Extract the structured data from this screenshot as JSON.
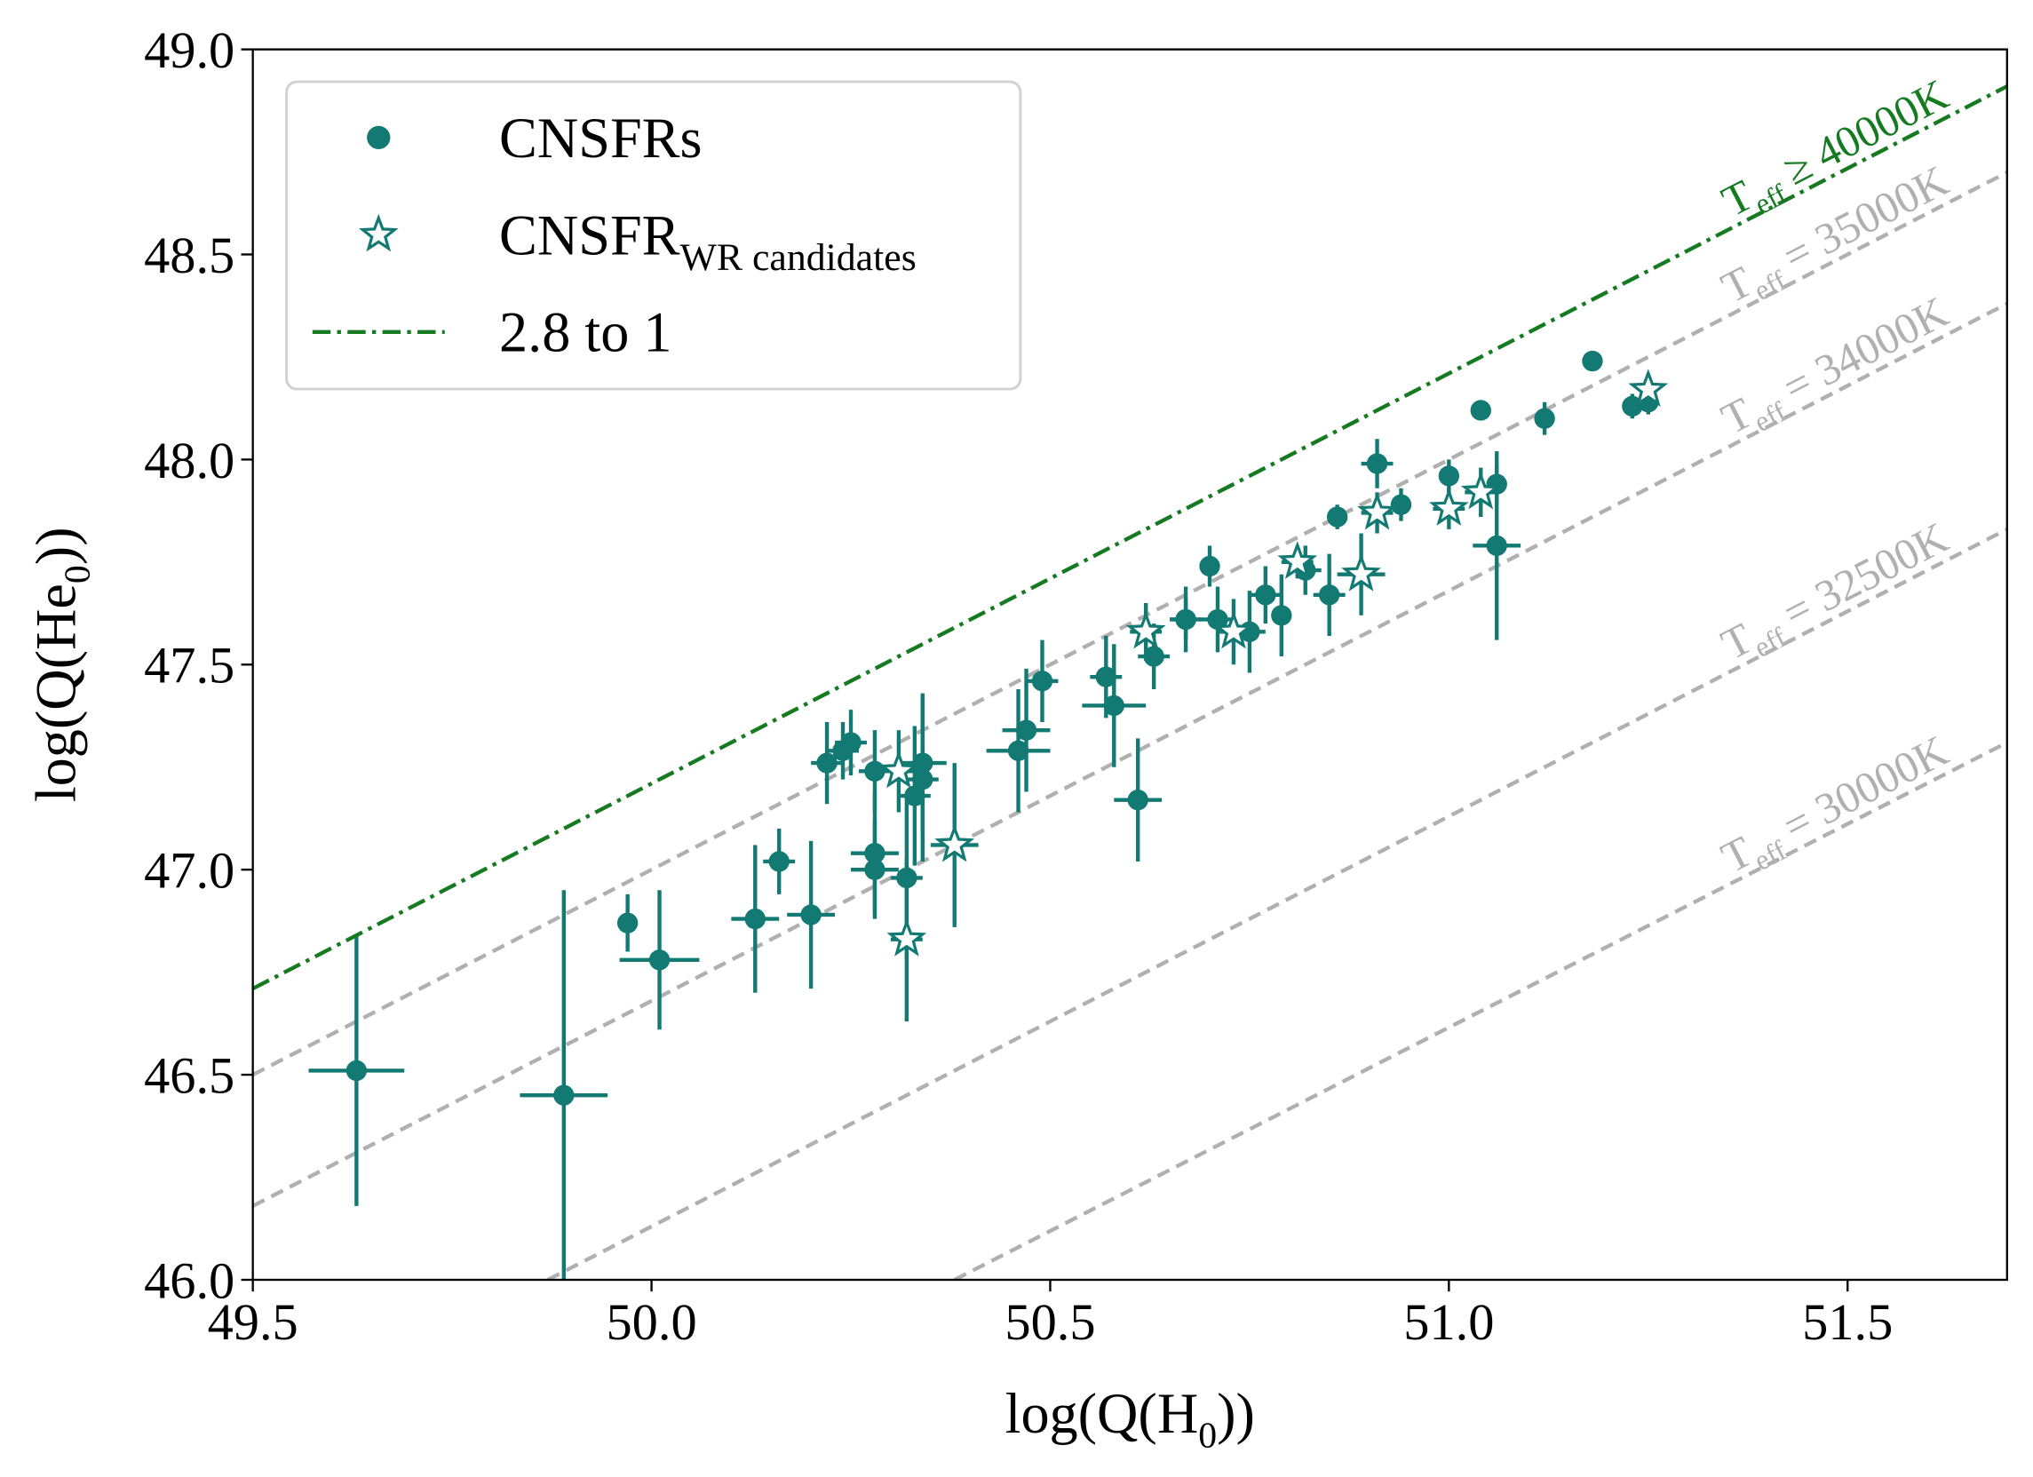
{
  "chart_data": {
    "type": "scatter",
    "xlabel": {
      "text": "log(Q(H",
      "sub": "0",
      "tail": "))"
    },
    "ylabel": {
      "text": "log(Q(He",
      "sub": "0",
      "tail": "))"
    },
    "xlim": [
      49.5,
      51.7
    ],
    "ylim": [
      46.0,
      49.0
    ],
    "xticks": [
      49.5,
      {
        "value": 50,
        "label": "50.0"
      },
      50.5,
      {
        "value": 51,
        "label": "51.0"
      },
      51.5
    ],
    "yticks": [
      {
        "value": 46,
        "label": "46.0"
      },
      46.5,
      {
        "value": 47,
        "label": "47.0"
      },
      47.5,
      {
        "value": 48,
        "label": "48.0"
      },
      48.5,
      {
        "value": 49,
        "label": "49.0"
      }
    ],
    "legend": "upper left",
    "series": [
      {
        "name": "CNSFRs",
        "marker": "circle",
        "color": "#137a73",
        "x": [
          49.63,
          49.89,
          49.97,
          50.01,
          50.13,
          50.16,
          50.2,
          50.22,
          50.24,
          50.25,
          50.28,
          50.28,
          50.28,
          50.32,
          50.33,
          50.34,
          50.34,
          50.46,
          50.47,
          50.49,
          50.57,
          50.58,
          50.61,
          50.63,
          50.67,
          50.67,
          50.7,
          50.71,
          50.75,
          50.77,
          50.79,
          50.82,
          50.85,
          50.86,
          50.91,
          50.94,
          51.0,
          51.04,
          51.06,
          51.06,
          51.12,
          51.18,
          51.23,
          51.25
        ],
        "y": [
          46.51,
          46.45,
          46.87,
          46.78,
          46.88,
          47.02,
          46.89,
          47.26,
          47.29,
          47.31,
          47.24,
          47.04,
          47.0,
          46.98,
          47.18,
          47.22,
          47.26,
          47.29,
          47.34,
          47.46,
          47.47,
          47.4,
          47.17,
          47.52,
          47.61,
          47.61,
          47.74,
          47.61,
          47.58,
          47.67,
          47.62,
          47.73,
          47.67,
          47.86,
          47.99,
          47.89,
          47.96,
          48.12,
          47.79,
          47.94,
          48.1,
          48.24,
          48.13,
          48.14
        ],
        "xerr": [
          0.06,
          0.055,
          0.01,
          0.05,
          0.03,
          0.02,
          0.03,
          0.02,
          0.02,
          0.02,
          0.02,
          0.03,
          0.03,
          0.02,
          0.02,
          0.02,
          0.03,
          0.04,
          0.03,
          0.02,
          0.02,
          0.04,
          0.03,
          0.02,
          0.02,
          0.02,
          0.01,
          0.02,
          0.02,
          0.02,
          0.01,
          0.02,
          0.02,
          0.01,
          0.02,
          0.01,
          0.01,
          0,
          0.03,
          0.01,
          0.01,
          0,
          0.01,
          0.01
        ],
        "yerr": [
          0.33,
          0.5,
          0.07,
          0.17,
          0.18,
          0.08,
          0.18,
          0.1,
          0.07,
          0.08,
          0.1,
          0.15,
          0.12,
          0.2,
          0.17,
          0.2,
          0.17,
          0.15,
          0.15,
          0.1,
          0.1,
          0.15,
          0.15,
          0.08,
          0.08,
          0.05,
          0.05,
          0.08,
          0.1,
          0.07,
          0.1,
          0.06,
          0.1,
          0.03,
          0.06,
          0.04,
          0.04,
          0,
          0.23,
          0.05,
          0.04,
          0,
          0.03,
          0.03
        ]
      },
      {
        "name": "CNSFR",
        "name_sub": "WR candidates",
        "marker": "star",
        "color": "#137a73",
        "x": [
          50.31,
          50.32,
          50.38,
          50.62,
          50.73,
          50.81,
          50.89,
          50.91,
          51.0,
          51.04,
          51.25
        ],
        "y": [
          47.24,
          46.83,
          47.06,
          47.58,
          47.58,
          47.75,
          47.72,
          47.87,
          47.88,
          47.92,
          48.17
        ],
        "xerr": [
          0.03,
          0.02,
          0.03,
          0.02,
          0.02,
          0.02,
          0.03,
          0.02,
          0.02,
          0.02,
          0.01
        ],
        "yerr": [
          0.1,
          0.2,
          0.2,
          0.07,
          0.08,
          0.04,
          0.1,
          0.05,
          0.05,
          0.06,
          0.04
        ]
      },
      {
        "name": "2.8 to 1",
        "marker": "dashdot",
        "color": "#157a20",
        "x": [
          49.5,
          51.7
        ],
        "y": [
          46.71,
          48.91
        ]
      }
    ],
    "lines": [
      {
        "color": "#b0b0b0",
        "x": [
          49.5,
          51.7
        ],
        "y": [
          46.5,
          48.7
        ]
      },
      {
        "color": "#b0b0b0",
        "x": [
          49.5,
          51.7
        ],
        "y": [
          46.18,
          48.38
        ]
      },
      {
        "color": "#b0b0b0",
        "x": [
          49.87,
          51.7
        ],
        "y": [
          46.0,
          47.83
        ]
      },
      {
        "color": "#b0b0b0",
        "x": [
          50.38,
          51.7
        ],
        "y": [
          46.0,
          47.31
        ]
      }
    ],
    "annotations": [
      {
        "text": "T",
        "sub": "eff",
        "tail": " ≥ 40000K",
        "color": "#157a20"
      },
      {
        "text": "T",
        "sub": "eff",
        "tail": " = 35000K",
        "color": "#b0b0b0"
      },
      {
        "text": "T",
        "sub": "eff",
        "tail": " = 34000K",
        "color": "#b0b0b0"
      },
      {
        "text": "T",
        "sub": "eff",
        "tail": " = 32500K",
        "color": "#b0b0b0"
      },
      {
        "text": "T",
        "sub": "eff",
        "tail": " = 30000K",
        "color": "#b0b0b0"
      }
    ]
  }
}
